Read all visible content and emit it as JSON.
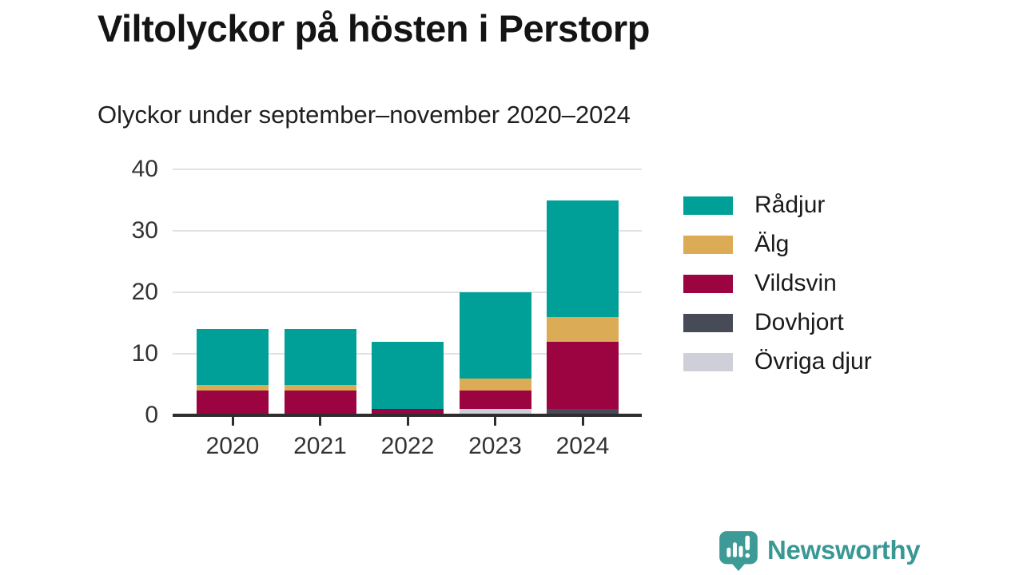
{
  "title": "Viltolyckor på hösten i Perstorp",
  "subtitle": "Olyckor under september–november 2020–2024",
  "branding": {
    "logo_text": "Newsworthy",
    "brand_color": "#399894",
    "bubble_color": "#3d9a96"
  },
  "colors": {
    "axis": "#2e2e2e",
    "grid": "#e2e2e2",
    "tick_text": "#333333",
    "heading_text": "#141414"
  },
  "chart_data": {
    "type": "bar",
    "stacked": true,
    "title": "Viltolyckor på hösten i Perstorp",
    "subtitle": "Olyckor under september–november 2020–2024",
    "categories": [
      "2020",
      "2021",
      "2022",
      "2023",
      "2024"
    ],
    "series": [
      {
        "name": "Rådjur",
        "color": "#00a099",
        "values": [
          9,
          9,
          11,
          14,
          19
        ]
      },
      {
        "name": "Älg",
        "color": "#dcab55",
        "values": [
          1,
          1,
          0,
          2,
          4
        ]
      },
      {
        "name": "Vildsvin",
        "color": "#9c0341",
        "values": [
          4,
          4,
          1,
          3,
          11
        ]
      },
      {
        "name": "Dovhjort",
        "color": "#474a57",
        "values": [
          0,
          0,
          0,
          0,
          1
        ]
      },
      {
        "name": "Övriga djur",
        "color": "#cfcfda",
        "values": [
          0,
          0,
          0,
          1,
          0
        ]
      }
    ],
    "stack_order_bottom_to_top": [
      "Övriga djur",
      "Dovhjort",
      "Vildsvin",
      "Älg",
      "Rådjur"
    ],
    "totals": [
      14,
      14,
      12,
      20,
      35
    ],
    "xlabel": "",
    "ylabel": "",
    "y_ticks": [
      0,
      10,
      20,
      30,
      40
    ],
    "ylim": [
      0,
      40
    ],
    "grid": true,
    "legend_position": "right"
  }
}
